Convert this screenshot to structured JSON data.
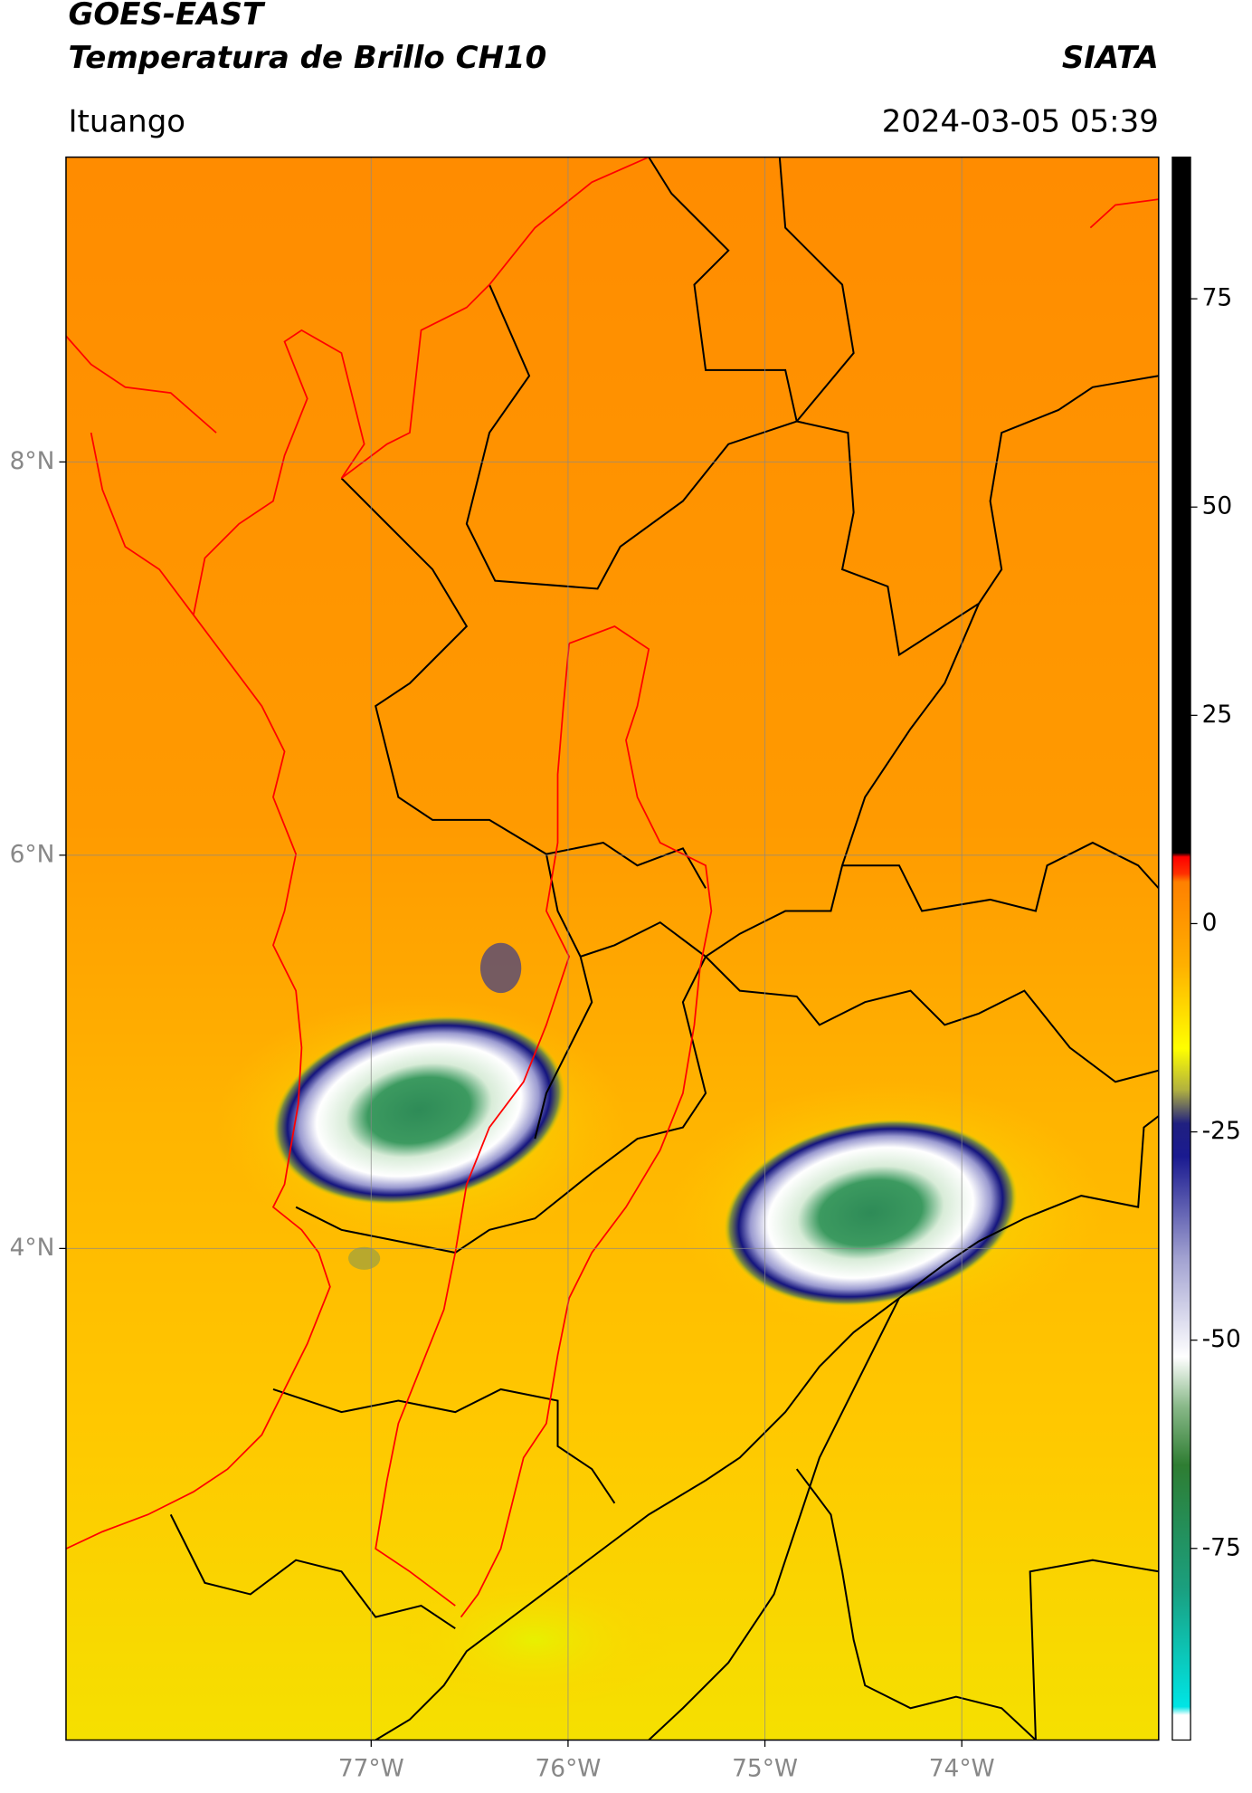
{
  "map": {
    "title": "GOES-EAST",
    "subtitle": "Temperatura de Brillo CH10",
    "source": "SIATA",
    "region": "Ituango",
    "datetime": "2024-03-05 05:39",
    "xlim": [
      -78.55,
      -73.0
    ],
    "ylim": [
      1.5,
      9.55
    ],
    "xticks": [
      {
        "value": -77,
        "label": "77°W"
      },
      {
        "value": -76,
        "label": "76°W"
      },
      {
        "value": -75,
        "label": "75°W"
      },
      {
        "value": -74,
        "label": "74°W"
      }
    ],
    "yticks": [
      {
        "value": 8,
        "label": "8°N"
      },
      {
        "value": 6,
        "label": "6°N"
      },
      {
        "value": 4,
        "label": "4°N"
      }
    ],
    "grid": true,
    "colorbar": {
      "lim": [
        -98,
        92
      ],
      "ticks": [
        75,
        50,
        25,
        0,
        -25,
        -50,
        -75
      ],
      "colormap": [
        {
          "value": -98,
          "color": "#ffffff"
        },
        {
          "value": -95,
          "color": "#ffffff"
        },
        {
          "value": -94,
          "color": "#00e5e5"
        },
        {
          "value": -80,
          "color": "#1aa080"
        },
        {
          "value": -65,
          "color": "#2e7d32"
        },
        {
          "value": -58,
          "color": "#88b888"
        },
        {
          "value": -52,
          "color": "#ffffff"
        },
        {
          "value": -40,
          "color": "#a0a0d0"
        },
        {
          "value": -28,
          "color": "#1a1a90"
        },
        {
          "value": -24,
          "color": "#202080"
        },
        {
          "value": -20,
          "color": "#b0b040"
        },
        {
          "value": -15,
          "color": "#ffff00"
        },
        {
          "value": -5,
          "color": "#ffb000"
        },
        {
          "value": 5,
          "color": "#ff8000"
        },
        {
          "value": 6,
          "color": "#ff3000"
        },
        {
          "value": 8,
          "color": "#ff0000"
        },
        {
          "value": 8.5,
          "color": "#000000"
        },
        {
          "value": 92,
          "color": "#000000"
        }
      ]
    }
  }
}
